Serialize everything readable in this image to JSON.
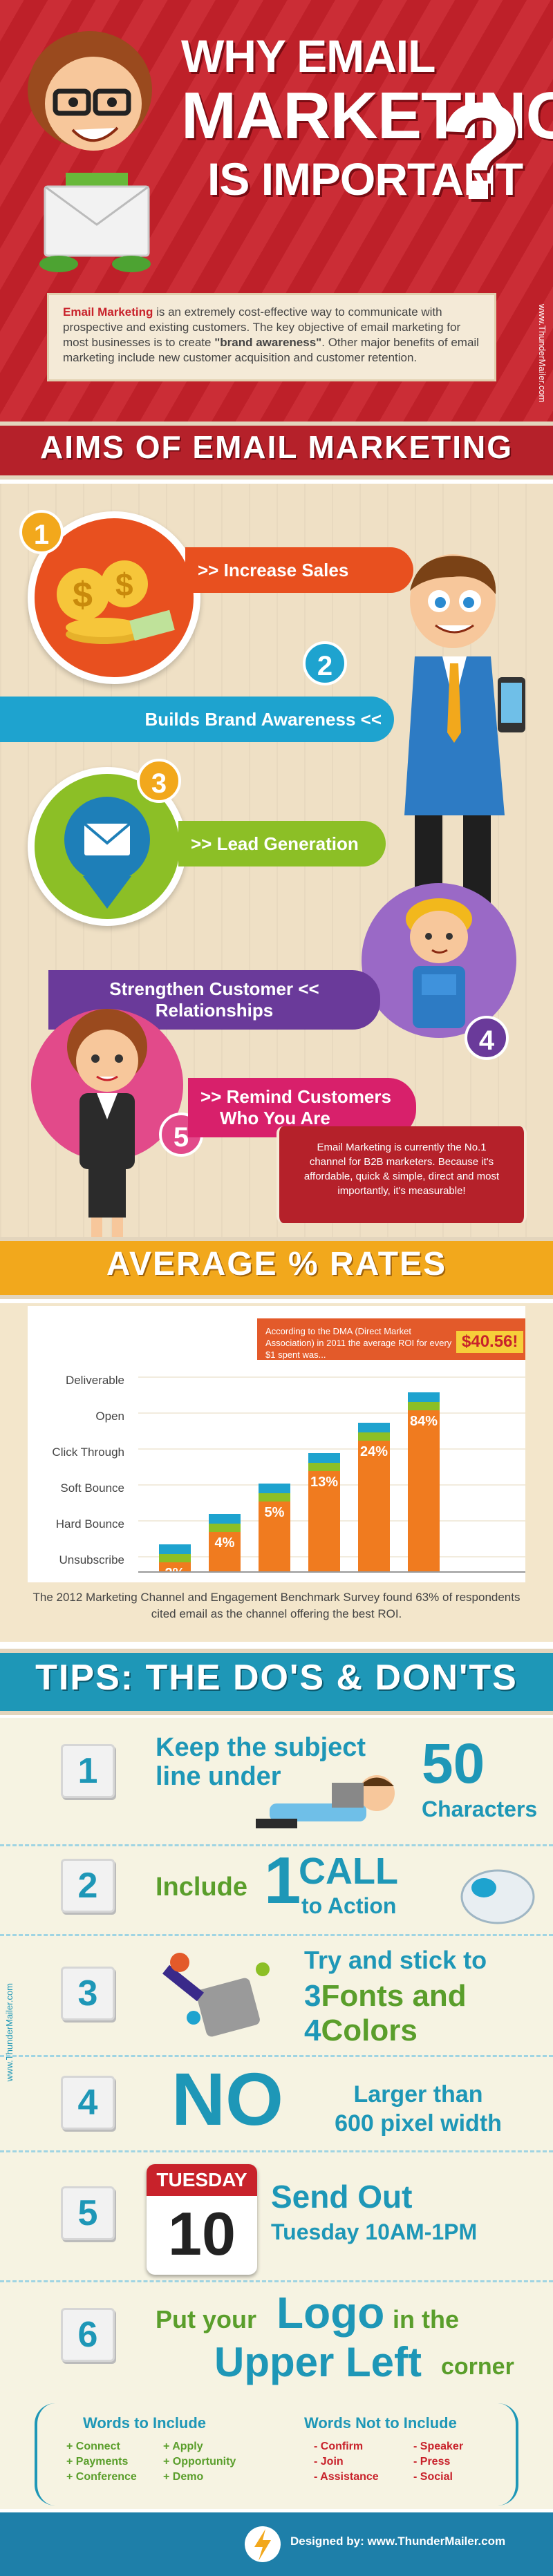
{
  "header": {
    "title_line1": "WHY EMAIL",
    "title_line2": "MARKETING",
    "title_line3": "IS IMPORTANT",
    "question_mark": "?",
    "intro_highlight": "Email Marketing",
    "intro_text_1": " is an extremely cost-effective way to communicate with prospective and existing customers. The key objective of email marketing for most businesses is to create ",
    "intro_brand": "\"brand awareness\"",
    "intro_text_2": ". Other major benefits of email marketing include new customer acquisition and customer retention.",
    "side_url": "www.ThunderMailer.com"
  },
  "aims": {
    "title": "AIMS OF EMAIL MARKETING",
    "items": [
      {
        "num": "1",
        "label": ">> Increase Sales",
        "color": "#e8501f"
      },
      {
        "num": "2",
        "label": "Builds Brand Awareness <<",
        "color": "#1ea3cf"
      },
      {
        "num": "3",
        "label": ">> Lead Generation",
        "color": "#8cbf26"
      },
      {
        "num": "4",
        "label_1": "Strengthen Customer <<",
        "label_2": "Relationships",
        "color": "#6a3a9a"
      },
      {
        "num": "5",
        "label_1": ">> Remind Customers",
        "label_2": "Who You Are",
        "color": "#d8206b"
      }
    ],
    "callout": "Email Marketing is currently the No.1 channel for B2B marketers. Because it's affordable, quick & simple, direct and most importantly, it's measurable!"
  },
  "rates": {
    "title": "AVERAGE % RATES",
    "dma_note": "According to the DMA (Direct Market Association) in 2011 the average ROI for every $1 spent was...",
    "dma_amount": "$40.56!",
    "y_labels": [
      "Deliverable",
      "Open",
      "Click Through",
      "Soft Bounce",
      "Hard Bounce",
      "Unsubscribe"
    ],
    "note": "The 2012 Marketing Channel and Engagement Benchmark Survey found 63% of respondents cited email as the channel offering the best ROI."
  },
  "chart_data": {
    "type": "bar",
    "categories": [
      "Unsubscribe",
      "Hard Bounce",
      "Soft Bounce",
      "Click Through",
      "Open",
      "Deliverable"
    ],
    "values": [
      2,
      4,
      5,
      13,
      24,
      84
    ],
    "value_labels": [
      "2%",
      "4%",
      "5%",
      "13%",
      "24%",
      "84%"
    ],
    "colors": {
      "bar_top": "#1ea3cf",
      "bar_mid": "#8cbf26",
      "bar_body": "#f07b1f"
    }
  },
  "tips": {
    "title": "TIPS: THE DO'S & DON'TS",
    "t1": {
      "num": "1",
      "line1": "Keep the subject",
      "line2": "line under",
      "big": "50",
      "small": "Characters"
    },
    "t2": {
      "num": "2",
      "pre": "Include",
      "big": "1",
      "call": "CALL",
      "action": "to Action"
    },
    "t3": {
      "num": "3",
      "line1": "Try and stick to",
      "l2_num": "3",
      "l2_txt": "Fonts and",
      "l3_num": "4",
      "l3_txt": "Colors"
    },
    "t4": {
      "num": "4",
      "big": "NO",
      "line1": "Larger than",
      "line2": "600 pixel width"
    },
    "t5": {
      "num": "5",
      "day": "TUESDAY",
      "date": "10",
      "line1": "Send Out",
      "line2": "Tuesday 10AM-1PM"
    },
    "t6": {
      "num": "6",
      "pre": "Put your",
      "logo": "Logo",
      "mid": "in the",
      "ul": "Upper Left",
      "post": "corner"
    },
    "side_url": "www.ThunderMailer.com"
  },
  "words": {
    "include_title": "Words to Include",
    "include_col1": [
      "+ Connect",
      "+ Payments",
      "+ Conference"
    ],
    "include_col2": [
      "+ Apply",
      "+ Opportunity",
      "+ Demo"
    ],
    "exclude_title": "Words Not to Include",
    "exclude_col1": [
      "- Confirm",
      "- Join",
      "- Assistance"
    ],
    "exclude_col2": [
      "- Speaker",
      "- Press",
      "- Social"
    ]
  },
  "footer": {
    "text": "Designed by: www.ThunderMailer.com"
  }
}
